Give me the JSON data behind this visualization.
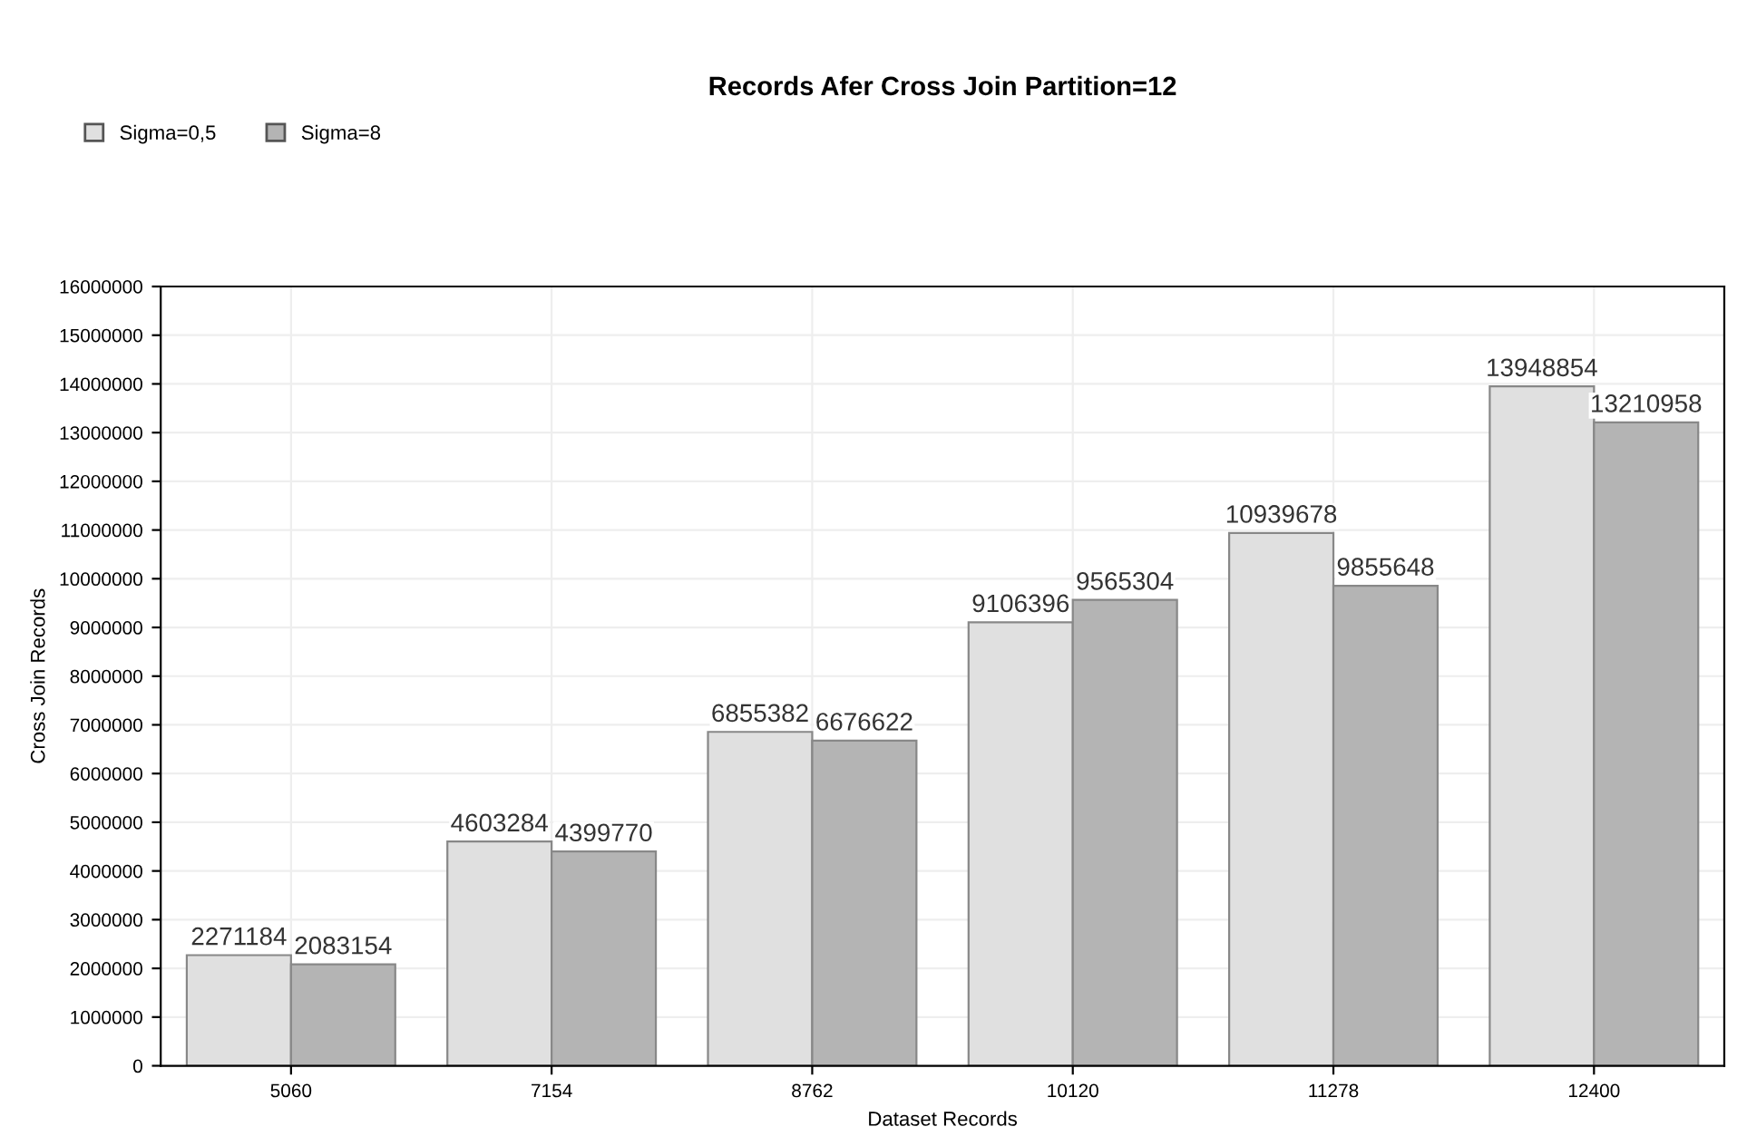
{
  "chart_data": {
    "type": "bar",
    "title": "Records Afer Cross Join Partition=12",
    "xlabel": "Dataset Records",
    "ylabel": "Cross Join Records",
    "categories": [
      "5060",
      "7154",
      "8762",
      "10120",
      "11278",
      "12400"
    ],
    "series": [
      {
        "name": "Sigma=0,5",
        "color": "#e0e0e0",
        "values": [
          2271184,
          4603284,
          6855382,
          9106396,
          10939678,
          13948854
        ]
      },
      {
        "name": "Sigma=8",
        "color": "#b4b4b4",
        "values": [
          2083154,
          4399770,
          6676622,
          9565304,
          9855648,
          13210958
        ]
      }
    ],
    "ylim": [
      0,
      16000000
    ],
    "yticks": [
      0,
      1000000,
      2000000,
      3000000,
      4000000,
      5000000,
      6000000,
      7000000,
      8000000,
      9000000,
      10000000,
      11000000,
      12000000,
      13000000,
      14000000,
      15000000,
      16000000
    ],
    "grid": true,
    "legend": "top left",
    "data_labels": true
  }
}
